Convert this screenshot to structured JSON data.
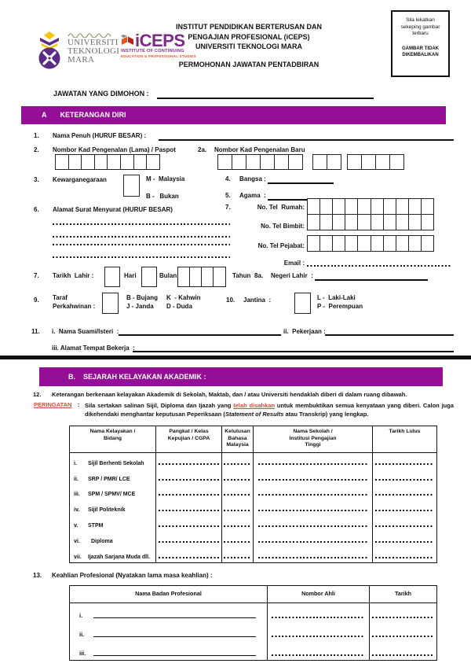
{
  "colors": {
    "purple": "#950f96",
    "alert": "#c2543a",
    "iceps_purple": "#7b2c85",
    "iceps_orange": "#e8541d",
    "uitm_gray": "#6d6e71",
    "uitm_purple": "#5b2b86",
    "uitm_gold": "#f7c600"
  },
  "header": {
    "uitm_wordmark": "UNIVERSITI\nTEKNOLOGI\nMARA",
    "iceps_name": "iCEPS",
    "iceps_sub1": "INSTITUTE OF CONTINUING",
    "iceps_sub2": "EDUCATION & PROFESSIONAL STUDIES",
    "institute_line1": "INSTITUT PENDIDIKAN BERTERUSAN DAN",
    "institute_line2": "PENGAJIAN PROFESIONAL (iCEPS)",
    "institute_line3": "UNIVERSITI TEKNOLOGI MARA",
    "form_title": "PERMOHONAN JAWATAN PENTADBIRAN",
    "photo_box": {
      "instruction": "Sila lekatkan\nsekeping gambar\nterbaru",
      "note": "GAMBAR TIDAK\nDIKEMBALIKAN"
    }
  },
  "jawatan_label": "JAWATAN YANG DIMOHON :",
  "section_a": {
    "letter": "A",
    "title": "KETERANGAN DIRI"
  },
  "items": {
    "q1_num": "1.",
    "q1_label": "Nama Penuh (HURUF BESAR) :",
    "q2_num": "2.",
    "q2_label": "Nombor Kad Pengenalan (Lama) / Paspot",
    "q2a_num": "2a.",
    "q2a_label": "Nombor Kad Pengenalan Baru",
    "q3_num": "3.",
    "q3_label": "Kewarganegaraan",
    "q3_opt1": "M -  Malaysia",
    "q3_opt2": "B -   Bukan",
    "q4_num": "4.",
    "q4_label": "Bangsa :",
    "q5_num": "5.",
    "q5_label": "Agama  :",
    "q6_num": "6.",
    "q6_label": "Alamat Surat Menyurat (HURUF BESAR)",
    "q7tel_num": "7.",
    "q7tel_rumah": "No. Tel  Rumah:",
    "q7tel_bimbit": "No. Tel Bimbit:",
    "q7tel_pejabat": "No. Tel Pejabat:",
    "q7tel_email": "Email :",
    "q7_num": "7.",
    "q7_label": "Tarikh  Lahir :",
    "q7_hari": "Hari",
    "q7_bulan": "Bulan",
    "q7_tahun": "Tahun",
    "q8a_num": "8a.",
    "q8a_label": "Negeri Lahir  :",
    "q9_num": "9.",
    "q9_label_line1": "Taraf",
    "q9_label_line2": "Perkahwinan :",
    "q9_opt_b": "B - Bujang",
    "q9_opt_k": "K  - Kahwin",
    "q9_opt_j": "J - Janda",
    "q9_opt_d": "D - Duda",
    "q10_num": "10.",
    "q10_label": "Jantina  :",
    "q10_opt1": "L -  Laki-Laki",
    "q10_opt2": "P -  Perempuan",
    "q11_num": "11.",
    "q11_i": "i.  Nama Suami/Isteri  :",
    "q11_ii": "ii.  Pekerjaan :",
    "q11_iii": "iii. Alamat Tempat Bekerja  :"
  },
  "section_b": {
    "letter": "B.",
    "title": "SEJARAH KELAYAKAN AKADEMIK :"
  },
  "q12": {
    "num": "12.",
    "text": "Keterangan berkenaan kelayakan Akademik di Sekolah, Maktab, dan / atau Universiti hendaklah diberi di dalam ruang dibawah."
  },
  "peringatan": {
    "label": "PERINGATAN",
    "colon": ":",
    "part1": "Sila sertakan salinan Sijil, Diploma dan Ijazah yang ",
    "highlight": "telah disahkan",
    "part2": " untuk membuktikan semua kenyataan yang diberi. Calon juga dikehendaki menghantar keputusan Peperiksaan (",
    "italic": "Statement of Results",
    "part3": " atau Transkrip) yang lengkap."
  },
  "academic_table": {
    "headers": [
      "Nama Kelayakan /\nBidang",
      "Pangkat / Kelas\nKepujian / CGPA",
      "Kelulusan\nBahasa\nMalaysia",
      "Nama Sekolah /\nInstitusi Pengajian\nTinggi",
      "Tarikh Lulus"
    ],
    "rows": [
      {
        "no": "i.",
        "label": "Sijil Berhenti Sekolah"
      },
      {
        "no": "ii.",
        "label": "SRP / PMR/ LCE"
      },
      {
        "no": "iii.",
        "label": "SPM / SPMV/ MCE"
      },
      {
        "no": "iv.",
        "label": "Sijil Politeknik"
      },
      {
        "no": "v.",
        "label": "STPM"
      },
      {
        "no": "vi.",
        "label": "Diploma"
      },
      {
        "no": "vii.",
        "label": "Ijazah Sarjana Muda dll."
      }
    ]
  },
  "q13": {
    "num": "13.",
    "label": "Keahlian Profesional (Nyatakan lama masa keahlian) :"
  },
  "professional_table": {
    "headers": [
      "Nama Badan Profesional",
      "Nombor Ahli",
      "Tarikh"
    ],
    "rows": [
      {
        "no": "i."
      },
      {
        "no": "ii."
      },
      {
        "no": "iii."
      }
    ]
  }
}
